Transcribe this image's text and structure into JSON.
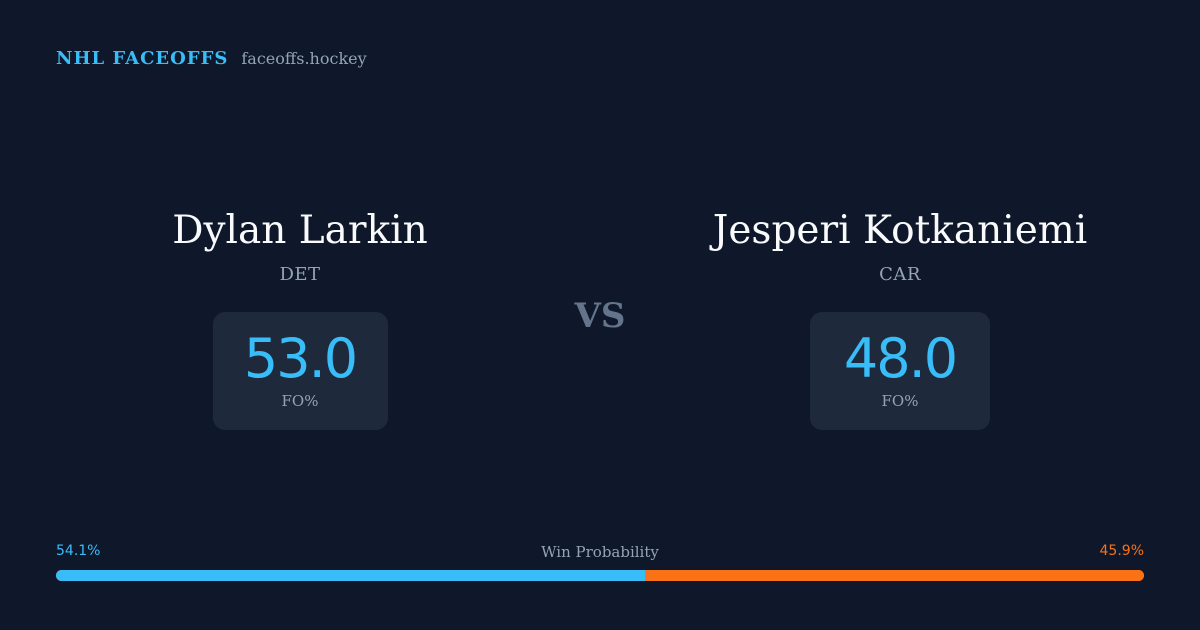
{
  "header": {
    "brand": "NHL FACEOFFS",
    "site": "faceoffs.hockey"
  },
  "players": [
    {
      "name": "Dylan Larkin",
      "team": "DET",
      "stat_value": "53.0",
      "stat_label": "FO%"
    },
    {
      "name": "Jesperi Kotkaniemi",
      "team": "CAR",
      "stat_value": "48.0",
      "stat_label": "FO%"
    }
  ],
  "versus_label": "VS",
  "win_probability": {
    "title": "Win Probability",
    "left_label": "54.1%",
    "right_label": "45.9%",
    "left_value": 54.1,
    "right_value": 45.9
  },
  "colors": {
    "background": "#0f172a",
    "accent_left": "#38bdf8",
    "accent_right": "#f97316",
    "card": "#1e293b",
    "muted_text": "#94a3b8"
  }
}
